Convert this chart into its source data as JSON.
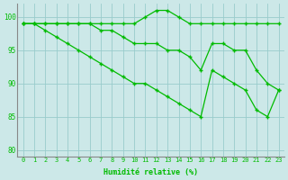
{
  "xlabel": "Humidité relative (%)",
  "hours": [
    0,
    1,
    2,
    3,
    4,
    5,
    6,
    7,
    8,
    9,
    10,
    11,
    12,
    13,
    14,
    15,
    16,
    17,
    18,
    19,
    20,
    21,
    22,
    23
  ],
  "line1": [
    99,
    99,
    99,
    99,
    99,
    99,
    99,
    99,
    99,
    99,
    99,
    100,
    101,
    101,
    100,
    99,
    99,
    99,
    99,
    99,
    99,
    99,
    99,
    99
  ],
  "line2": [
    99,
    99,
    99,
    99,
    99,
    99,
    99,
    98,
    98,
    97,
    96,
    96,
    96,
    95,
    95,
    94,
    92,
    96,
    96,
    95,
    95,
    92,
    90,
    89
  ],
  "line3": [
    99,
    99,
    98,
    97,
    96,
    95,
    94,
    93,
    92,
    91,
    90,
    90,
    89,
    88,
    87,
    86,
    85,
    92,
    91,
    90,
    89,
    86,
    85,
    89
  ],
  "bg_color": "#cce8e8",
  "grid_color": "#99cccc",
  "line_color": "#00bb00",
  "ylim": [
    79,
    102
  ],
  "yticks": [
    80,
    85,
    90,
    95,
    100
  ],
  "xlim": [
    -0.5,
    23.5
  ]
}
